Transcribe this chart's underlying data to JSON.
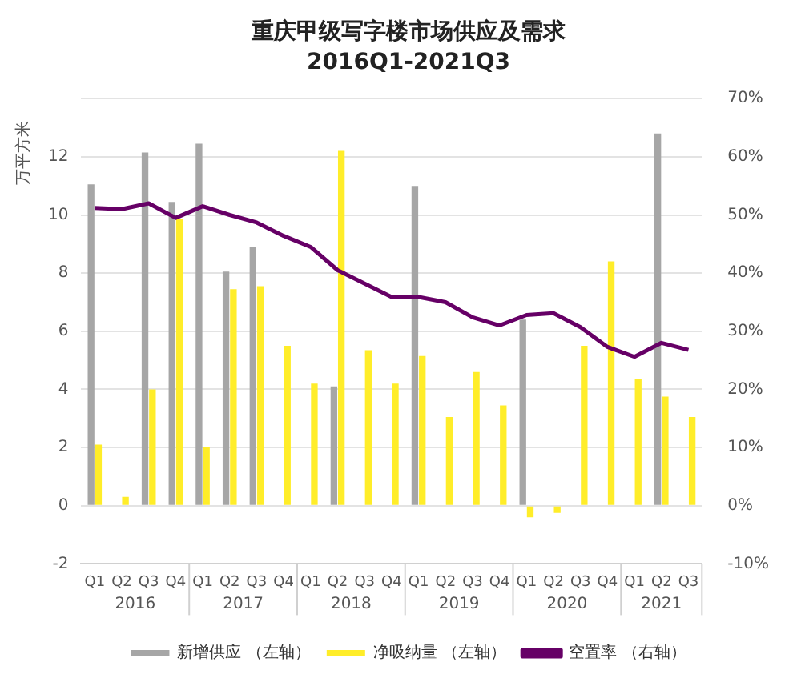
{
  "chart_data": {
    "type": "bar",
    "title": "重庆甲级写字楼市场供应及需求",
    "subtitle": "2016Q1-2021Q3",
    "ylabel": "万平方米",
    "categories": [
      "Q1",
      "Q2",
      "Q3",
      "Q4",
      "Q1",
      "Q2",
      "Q3",
      "Q4",
      "Q1",
      "Q2",
      "Q3",
      "Q4",
      "Q1",
      "Q2",
      "Q3",
      "Q4",
      "Q1",
      "Q2",
      "Q3",
      "Q4",
      "Q1",
      "Q2",
      "Q3"
    ],
    "annotations": [
      "2016",
      "2017",
      "2018",
      "2019",
      "2020",
      "2021"
    ],
    "series": [
      {
        "name": "新增供应 （左轴）",
        "color": "#a6a6a6",
        "values": [
          11.05,
          0,
          12.15,
          10.45,
          12.45,
          8.05,
          8.9,
          0,
          0,
          4.1,
          0,
          0,
          11.0,
          0,
          0,
          0,
          6.4,
          0,
          0,
          0,
          0,
          12.8,
          0
        ]
      },
      {
        "name": "净吸纳量 （左轴）",
        "color": "#ffed29",
        "values": [
          2.1,
          0.3,
          4.0,
          9.85,
          2.0,
          7.45,
          7.55,
          5.5,
          4.2,
          12.2,
          5.35,
          4.2,
          5.15,
          3.05,
          4.6,
          3.45,
          -0.4,
          -0.25,
          5.5,
          8.4,
          4.35,
          3.75,
          3.05
        ]
      },
      {
        "name": "空置率 （右轴）",
        "type": "line",
        "axis": "y2",
        "color": "#660066",
        "values": [
          51.2,
          51.0,
          52.0,
          49.5,
          51.5,
          50.0,
          48.7,
          46.4,
          44.5,
          40.5,
          38.2,
          35.9,
          35.9,
          35.0,
          32.4,
          31.0,
          32.8,
          33.1,
          30.7,
          27.3,
          25.6,
          28.0,
          26.8
        ]
      }
    ],
    "ylim": [
      -2,
      14
    ],
    "yticks": [
      -2,
      0,
      2,
      4,
      6,
      8,
      10,
      12,
      {
        "value": 14,
        "label": null
      }
    ],
    "y2lim": [
      -10,
      70
    ],
    "y2ticks": [
      {
        "value": -10,
        "label": "-10%"
      },
      {
        "value": 0,
        "label": "0%"
      },
      {
        "value": 10,
        "label": "10%"
      },
      {
        "value": 20,
        "label": "20%"
      },
      {
        "value": 30,
        "label": "30%"
      },
      {
        "value": 40,
        "label": "40%"
      },
      {
        "value": 50,
        "label": "50%"
      },
      {
        "value": 60,
        "label": "60%"
      },
      {
        "value": 70,
        "label": "70%"
      }
    ],
    "grid": "y",
    "legend": "bottom",
    "marker": "none"
  }
}
